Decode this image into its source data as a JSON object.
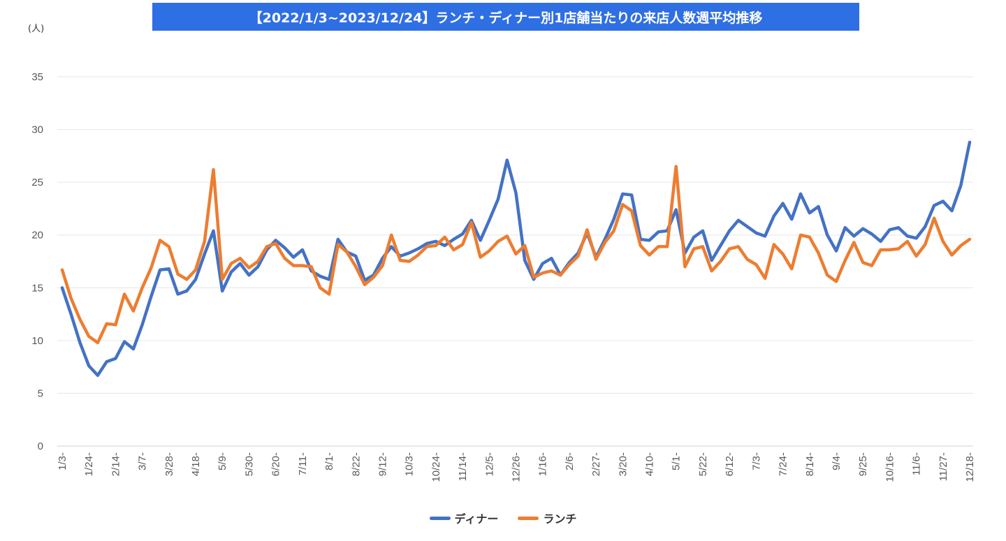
{
  "chart_data": {
    "type": "line",
    "title": "【2022/1/3~2023/12/24】ランチ・ディナー別1店舗当たりの来店人数週平均推移",
    "ylabel": "(人)",
    "xlabel": "",
    "ylim": [
      0,
      35
    ],
    "yticks": [
      0,
      5,
      10,
      15,
      20,
      25,
      30,
      35
    ],
    "grid": true,
    "legend_position": "bottom",
    "x_tick_labels": [
      "1/3-",
      "1/24-",
      "2/14-",
      "3/7-",
      "3/28-",
      "4/18-",
      "5/9-",
      "5/30-",
      "6/20-",
      "7/11-",
      "8/1-",
      "8/22-",
      "9/12-",
      "10/3-",
      "10/24-",
      "11/14-",
      "12/5-",
      "12/26-",
      "1/16-",
      "2/6-",
      "2/27-",
      "3/20-",
      "4/10-",
      "5/1-",
      "5/22-",
      "6/12-",
      "7/3-",
      "7/24-",
      "8/14-",
      "9/4-",
      "9/25-",
      "10/16-",
      "11/6-",
      "11/27-",
      "12/18-"
    ],
    "series": [
      {
        "name": "ディナー",
        "color": "#4472c4",
        "values": [
          15,
          12.5,
          9.8,
          7.6,
          6.7,
          8,
          8.3,
          9.9,
          9.2,
          11.5,
          14.2,
          16.7,
          16.8,
          14.4,
          14.7,
          15.8,
          18.2,
          20.4,
          14.7,
          16.5,
          17.3,
          16.2,
          17,
          18.6,
          19.5,
          18.8,
          17.9,
          18.6,
          16.6,
          16.1,
          15.8,
          19.6,
          18.4,
          18,
          15.7,
          16.2,
          17.8,
          18.9,
          18,
          18.3,
          18.7,
          19.2,
          19.4,
          19,
          19.6,
          20.1,
          21.4,
          19.5,
          21.4,
          23.4,
          27.1,
          24,
          17.6,
          15.8,
          17.3,
          17.8,
          16.2,
          17.4,
          18.3,
          20.2,
          17.9,
          19.6,
          21.5,
          23.9,
          23.8,
          19.6,
          19.5,
          20.3,
          20.4,
          22.4,
          18.3,
          19.8,
          20.4,
          17.6,
          19,
          20.4,
          21.4,
          20.8,
          20.2,
          19.9,
          21.8,
          23,
          21.5,
          23.9,
          22.1,
          22.7,
          20,
          18.5,
          20.7,
          19.9,
          20.6,
          20.1,
          19.4,
          20.5,
          20.7,
          19.9,
          19.7,
          20.8,
          22.8,
          23.2,
          22.3,
          24.7,
          28.8
        ]
      },
      {
        "name": "ランチ",
        "color": "#ed7d31",
        "values": [
          16.7,
          14,
          12,
          10.4,
          9.8,
          11.6,
          11.5,
          14.4,
          12.8,
          15,
          16.9,
          19.5,
          18.9,
          16.3,
          15.8,
          16.7,
          19.4,
          26.2,
          15.8,
          17.3,
          17.8,
          16.9,
          17.5,
          18.9,
          19.2,
          17.8,
          17.1,
          17.1,
          17,
          15,
          14.4,
          19.1,
          18.4,
          17,
          15.3,
          16,
          17.1,
          20,
          17.6,
          17.5,
          18.1,
          18.9,
          19,
          19.8,
          18.6,
          19.1,
          21.2,
          17.9,
          18.5,
          19.4,
          19.9,
          18.2,
          19,
          16,
          16.4,
          16.6,
          16.2,
          17.2,
          18,
          20.5,
          17.7,
          19.3,
          20.4,
          22.9,
          22.3,
          19,
          18.1,
          18.9,
          18.9,
          26.5,
          17,
          18.7,
          18.9,
          16.6,
          17.5,
          18.7,
          18.9,
          17.7,
          17.2,
          15.9,
          19.1,
          18.2,
          16.8,
          20,
          19.8,
          18.3,
          16.2,
          15.6,
          17.6,
          19.3,
          17.4,
          17.1,
          18.6,
          18.6,
          18.7,
          19.4,
          18,
          19.1,
          21.6,
          19.4,
          18.1,
          19,
          19.6
        ]
      }
    ]
  }
}
